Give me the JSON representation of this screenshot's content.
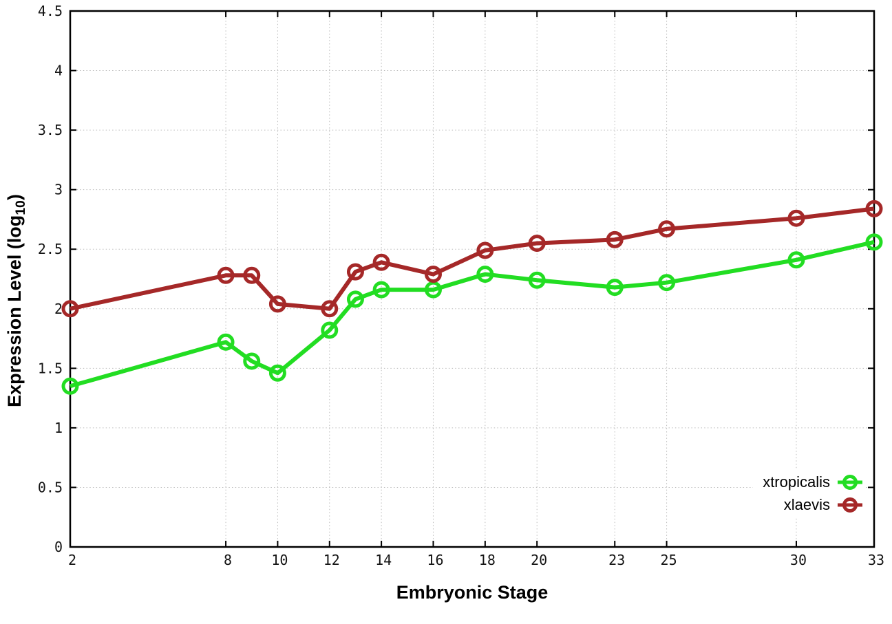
{
  "figure": {
    "xlabel": "Embryonic Stage",
    "ylabel": {
      "pre": "Expression Level (log",
      "sub": "10",
      "post": ")"
    }
  },
  "chart_data": {
    "type": "line",
    "x": [
      2,
      8,
      9,
      10,
      12,
      13,
      14,
      16,
      18,
      20,
      23,
      25,
      30,
      33
    ],
    "series": [
      {
        "name": "xtropicalis",
        "color": "#22dd22",
        "values": [
          1.35,
          1.72,
          1.56,
          1.46,
          1.82,
          2.08,
          2.16,
          2.16,
          2.29,
          2.24,
          2.18,
          2.22,
          2.41,
          2.56
        ]
      },
      {
        "name": "xlaevis",
        "color": "#a52828",
        "values": [
          2.0,
          2.28,
          2.28,
          2.04,
          2.0,
          2.31,
          2.39,
          2.29,
          2.49,
          2.55,
          2.58,
          2.67,
          2.76,
          2.84
        ]
      }
    ],
    "xlabel": "Embryonic Stage",
    "ylabel": "Expression Level (log10)",
    "xticks": [
      2,
      8,
      10,
      12,
      14,
      16,
      18,
      20,
      23,
      25,
      30,
      33
    ],
    "yticks": [
      0,
      0.5,
      1,
      1.5,
      2,
      2.5,
      3,
      3.5,
      4,
      4.5
    ],
    "xlim": [
      2,
      33
    ],
    "ylim": [
      0,
      4.5
    ],
    "grid": true,
    "legend_position": "bottom-right",
    "marker": "open-circle"
  }
}
